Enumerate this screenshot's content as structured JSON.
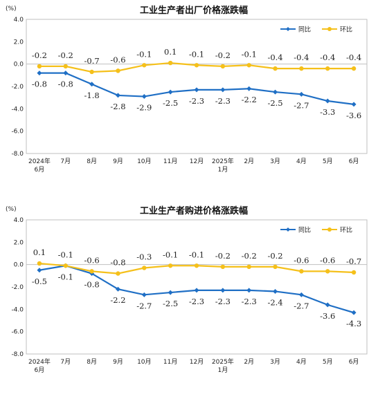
{
  "chart_data": [
    {
      "type": "line",
      "title": "工业生产者出厂价格涨跌幅",
      "unit": "(%)",
      "ylim": [
        -8.0,
        4.0
      ],
      "yticks": [
        "4.0",
        "2.0",
        "0.0",
        "-2.0",
        "-4.0",
        "-6.0",
        "-8.0"
      ],
      "ytick_values": [
        4,
        2,
        0,
        -2,
        -4,
        -6,
        -8
      ],
      "categories": [
        "2024年\n6月",
        "7月",
        "8月",
        "9月",
        "10月",
        "11月",
        "12月",
        "2025年\n1月",
        "2月",
        "3月",
        "4月",
        "5月",
        "6月"
      ],
      "legend_position": "top-right",
      "series": [
        {
          "name": "同比",
          "color": "#1f6fc5",
          "values": [
            -0.8,
            -0.8,
            -1.8,
            -2.8,
            -2.9,
            -2.5,
            -2.3,
            -2.3,
            -2.2,
            -2.5,
            -2.7,
            -3.3,
            -3.6
          ],
          "labels": [
            "-0.8",
            "-0.8",
            "-1.8",
            "-2.8",
            "-2.9",
            "-2.5",
            "-2.3",
            "-2.3",
            "-2.2",
            "-2.5",
            "-2.7",
            "-3.3",
            "-3.6"
          ]
        },
        {
          "name": "环比",
          "color": "#f5c01a",
          "values": [
            -0.2,
            -0.2,
            -0.7,
            -0.6,
            -0.1,
            0.1,
            -0.1,
            -0.2,
            -0.1,
            -0.4,
            -0.4,
            -0.4,
            -0.4
          ],
          "labels": [
            "-0.2",
            "-0.2",
            "-0.7",
            "-0.6",
            "-0.1",
            "0.1",
            "-0.1",
            "-0.2",
            "-0.1",
            "-0.4",
            "-0.4",
            "-0.4",
            "-0.4"
          ]
        }
      ]
    },
    {
      "type": "line",
      "title": "工业生产者购进价格涨跌幅",
      "unit": "(%)",
      "ylim": [
        -8.0,
        4.0
      ],
      "yticks": [
        "4.0",
        "2.0",
        "0.0",
        "-2.0",
        "-4.0",
        "-6.0",
        "-8.0"
      ],
      "ytick_values": [
        4,
        2,
        0,
        -2,
        -4,
        -6,
        -8
      ],
      "categories": [
        "2024年\n6月",
        "7月",
        "8月",
        "9月",
        "10月",
        "11月",
        "12月",
        "2025年\n1月",
        "2月",
        "3月",
        "4月",
        "5月",
        "6月"
      ],
      "legend_position": "top-right",
      "series": [
        {
          "name": "同比",
          "color": "#1f6fc5",
          "values": [
            -0.5,
            -0.1,
            -0.8,
            -2.2,
            -2.7,
            -2.5,
            -2.3,
            -2.3,
            -2.3,
            -2.4,
            -2.7,
            -3.6,
            -4.3
          ],
          "labels": [
            "-0.5",
            "-0.1",
            "-0.8",
            "-2.2",
            "-2.7",
            "-2.5",
            "-2.3",
            "-2.3",
            "-2.3",
            "-2.4",
            "-2.7",
            "-3.6",
            "-4.3"
          ]
        },
        {
          "name": "环比",
          "color": "#f5c01a",
          "values": [
            0.1,
            -0.1,
            -0.6,
            -0.8,
            -0.3,
            -0.1,
            -0.1,
            -0.2,
            -0.2,
            -0.2,
            -0.6,
            -0.6,
            -0.7
          ],
          "labels": [
            "0.1",
            "-0.1",
            "-0.6",
            "-0.8",
            "-0.3",
            "-0.1",
            "-0.1",
            "-0.2",
            "-0.2",
            "-0.2",
            "-0.6",
            "-0.6",
            "-0.7"
          ]
        }
      ]
    }
  ]
}
